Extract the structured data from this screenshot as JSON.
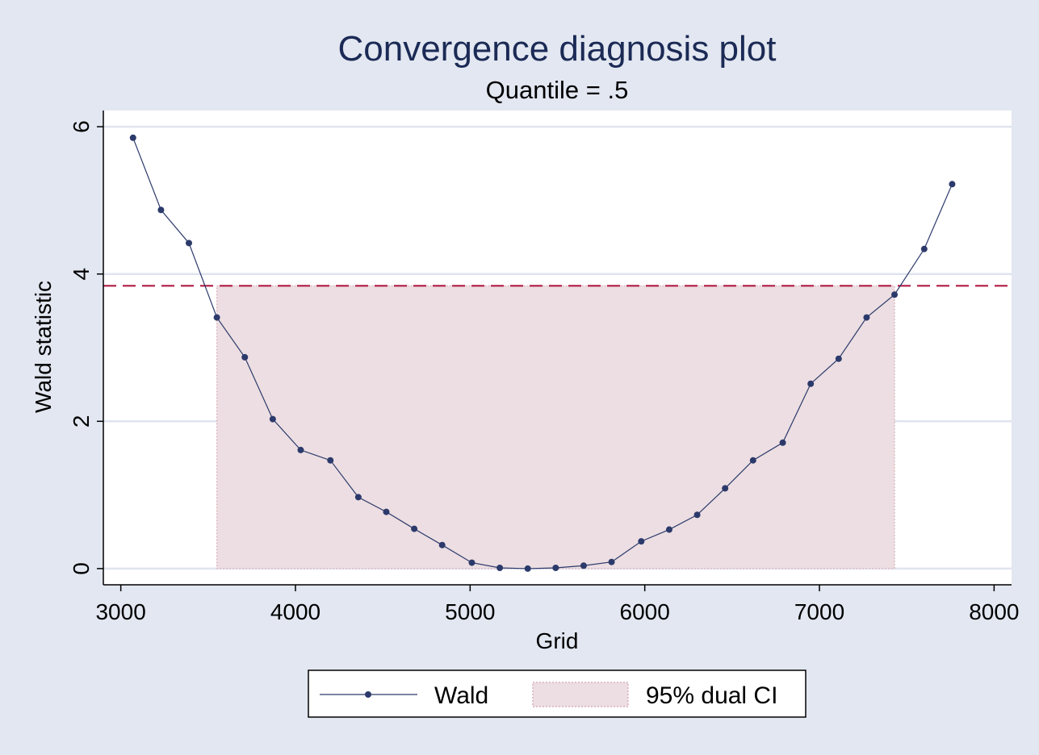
{
  "chart_data": {
    "type": "line",
    "title": "Convergence diagnosis plot",
    "subtitle": "Quantile = .5",
    "xlabel": "Grid",
    "ylabel": "Wald statistic",
    "xlim": [
      2900,
      8100
    ],
    "ylim": [
      -0.22,
      6.22
    ],
    "xticks": [
      3000,
      4000,
      5000,
      6000,
      7000,
      8000
    ],
    "yticks": [
      0,
      2,
      4,
      6
    ],
    "grid": "horizontal",
    "legend_position": "bottom",
    "series": [
      {
        "name": "Wald",
        "color": "#2c3a6b",
        "x": [
          3070,
          3230,
          3390,
          3550,
          3710,
          3870,
          4030,
          4200,
          4360,
          4520,
          4680,
          4840,
          5010,
          5170,
          5330,
          5490,
          5650,
          5810,
          5980,
          6140,
          6300,
          6460,
          6620,
          6790,
          6950,
          7110,
          7270,
          7430,
          7600,
          7760
        ],
        "y": [
          5.85,
          4.87,
          4.42,
          3.41,
          2.87,
          2.03,
          1.61,
          1.47,
          0.97,
          0.77,
          0.54,
          0.32,
          0.08,
          0.01,
          0.0,
          0.01,
          0.04,
          0.09,
          0.37,
          0.53,
          0.73,
          1.09,
          1.47,
          1.71,
          2.51,
          2.85,
          3.41,
          3.72,
          4.34,
          5.22
        ]
      }
    ],
    "ci_band": {
      "name": "95% dual CI",
      "x_range": [
        3550,
        7430
      ],
      "y_range": [
        0,
        3.84
      ],
      "fill": "#ecdee2",
      "edge": "#d9b1b9"
    },
    "threshold_line": {
      "y": 3.84,
      "color": "#b01b42"
    },
    "colors": {
      "background": "#e2e7f1",
      "plot": "#ffffff",
      "gridline": "#dfe4ef"
    }
  }
}
